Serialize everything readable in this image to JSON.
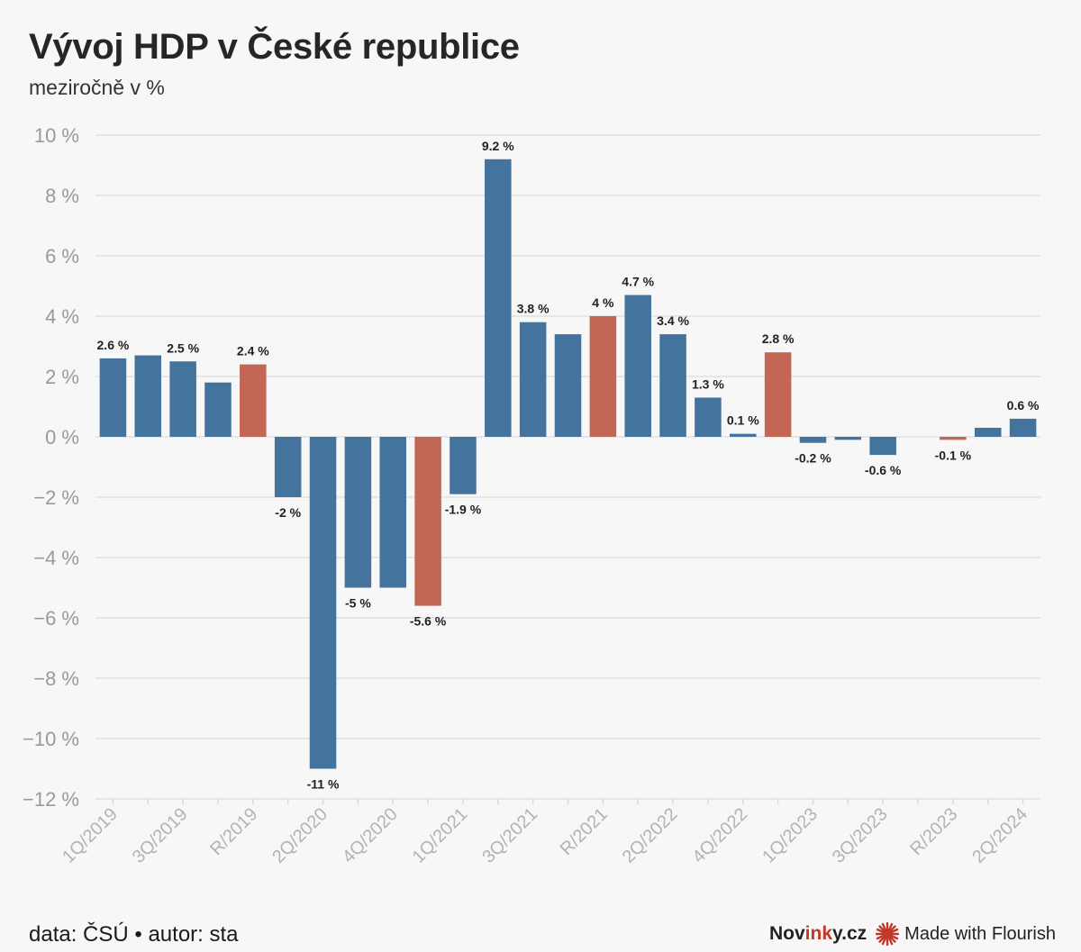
{
  "header": {
    "title": "Vývoj HDP v České republice",
    "subtitle": "meziročně v %"
  },
  "footer": {
    "source": "data: ČSÚ • autor: sta",
    "brand_pre": "Nov",
    "brand_mid": "ink",
    "brand_post": "y.cz",
    "made_with": "Made with Flourish"
  },
  "colors": {
    "quarter": "#44739e",
    "year": "#c46655",
    "grid": "#e6e6e6",
    "axis_text": "#999999",
    "label_text": "#222222",
    "flourish_star": "#c0392b"
  },
  "chart_data": {
    "type": "bar",
    "title": "Vývoj HDP v České republice",
    "subtitle": "meziročně v %",
    "ylim": [
      -12,
      10
    ],
    "yticks": [
      10,
      8,
      6,
      4,
      2,
      0,
      -2,
      -4,
      -6,
      -8,
      -10,
      -12
    ],
    "ytick_labels": [
      "10 %",
      "8 %",
      "6 %",
      "4 %",
      "2 %",
      "0 %",
      "−2 %",
      "−4 %",
      "−6 %",
      "−8 %",
      "−10 %",
      "−12 %"
    ],
    "grid": true,
    "categories": [
      "1Q/2019",
      "2Q/2019",
      "3Q/2019",
      "4Q/2019",
      "R/2019",
      "1Q/2020",
      "2Q/2020",
      "3Q/2020",
      "4Q/2020",
      "R/2020",
      "1Q/2021",
      "2Q/2021",
      "3Q/2021",
      "4Q/2021",
      "R/2021",
      "1Q/2022",
      "2Q/2022",
      "3Q/2022",
      "4Q/2022",
      "R/2022",
      "1Q/2023",
      "2Q/2023",
      "3Q/2023",
      "4Q/2023",
      "R/2023",
      "1Q/2024",
      "2Q/2024"
    ],
    "xtick_labels_shown": [
      "1Q/2019",
      "3Q/2019",
      "R/2019",
      "2Q/2020",
      "4Q/2020",
      "1Q/2021",
      "3Q/2021",
      "R/2021",
      "2Q/2022",
      "4Q/2022",
      "1Q/2023",
      "3Q/2023",
      "R/2023",
      "2Q/2024"
    ],
    "values": [
      2.6,
      2.7,
      2.5,
      1.8,
      2.4,
      -2.0,
      -11.0,
      -5.0,
      -5.0,
      -5.6,
      -1.9,
      9.2,
      3.8,
      3.4,
      4.0,
      4.7,
      3.4,
      1.3,
      0.1,
      2.8,
      -0.2,
      -0.1,
      -0.6,
      0.0,
      -0.1,
      0.3,
      0.6
    ],
    "kinds": [
      "q",
      "q",
      "q",
      "q",
      "y",
      "q",
      "q",
      "q",
      "q",
      "y",
      "q",
      "q",
      "q",
      "q",
      "y",
      "q",
      "q",
      "q",
      "q",
      "y",
      "q",
      "q",
      "q",
      "q",
      "y",
      "q",
      "q"
    ],
    "data_labels": [
      "2.6 %",
      "",
      "2.5 %",
      "",
      "2.4 %",
      "-2 %",
      "-11 %",
      "-5 %",
      "",
      "-5.6 %",
      "-1.9 %",
      "9.2 %",
      "3.8 %",
      "",
      "4 %",
      "4.7 %",
      "3.4 %",
      "1.3 %",
      "0.1 %",
      "2.8 %",
      "-0.2 %",
      "",
      "-0.6 %",
      "",
      "-0.1 %",
      "",
      "0.6 %"
    ]
  }
}
